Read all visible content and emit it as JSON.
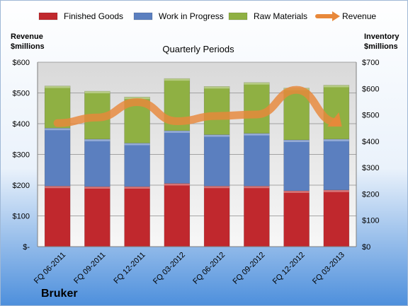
{
  "chart_data": {
    "type": "bar",
    "stacked": true,
    "title": "Quarterly Periods",
    "company": "Bruker",
    "categories": [
      "FQ 06-2011",
      "FQ 09-2011",
      "FQ 12-2011",
      "FQ 03-2012",
      "FQ 06-2012",
      "FQ 09-2012",
      "FQ 12-2012",
      "FQ 03-2013"
    ],
    "series": [
      {
        "name": "Finished Goods",
        "axis": "right",
        "color": "#c0282d",
        "values": [
          230,
          228,
          228,
          240,
          230,
          230,
          212,
          215
        ]
      },
      {
        "name": "Work in Progress",
        "axis": "right",
        "color": "#5b7fbf",
        "values": [
          220,
          180,
          165,
          200,
          195,
          200,
          193,
          193
        ]
      },
      {
        "name": "Raw Materials",
        "axis": "right",
        "color": "#8fb043",
        "values": [
          160,
          182,
          175,
          198,
          183,
          193,
          197,
          205
        ]
      },
      {
        "name": "Revenue",
        "axis": "left",
        "type": "line",
        "color": "#e8883a",
        "values": [
          402,
          420,
          470,
          408,
          425,
          430,
          510,
          405
        ]
      }
    ],
    "y_left": {
      "label_line1": "Revenue",
      "label_line2": "$millions",
      "range": [
        0,
        600
      ],
      "ticks": [
        "$-",
        "$100",
        "$200",
        "$300",
        "$400",
        "$500",
        "$600"
      ]
    },
    "y_right": {
      "label_line1": "Inventory",
      "label_line2": "$millions",
      "range": [
        0,
        700
      ],
      "ticks": [
        "$0",
        "$100",
        "$200",
        "$300",
        "$400",
        "$500",
        "$600",
        "$700"
      ]
    },
    "legend_position": "top",
    "grid": true
  }
}
